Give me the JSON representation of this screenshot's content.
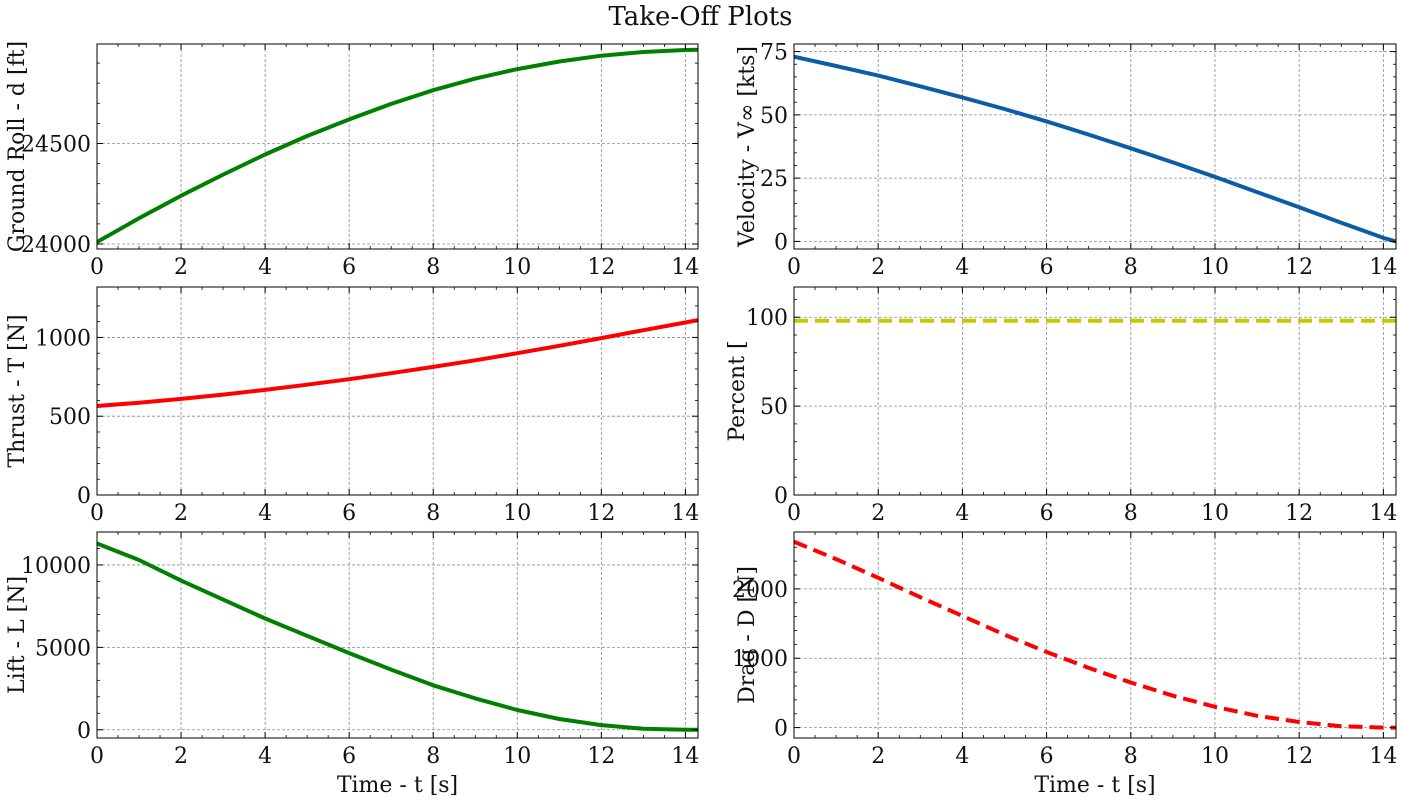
{
  "title": "Take-Off Plots",
  "x_tick_labels": [
    "0",
    "2",
    "4",
    "6",
    "8",
    "10",
    "12",
    "14"
  ],
  "chart_data": [
    {
      "type": "line",
      "ylabel": "Ground Roll - d [ft]",
      "xlabel": "",
      "xlim": [
        0,
        14.3
      ],
      "ylim": [
        23975,
        24995
      ],
      "yticks": [
        24000,
        24500
      ],
      "yminor": [
        24100,
        24200,
        24300,
        24400,
        24600,
        24700,
        24800,
        24900
      ],
      "series": [
        {
          "color": "#008000",
          "style": "solid",
          "x": [
            0,
            1,
            2,
            3,
            4,
            5,
            6,
            7,
            8,
            9,
            10,
            11,
            12,
            13,
            14,
            14.3
          ],
          "y": [
            24010,
            24128,
            24240,
            24345,
            24445,
            24537,
            24620,
            24697,
            24765,
            24823,
            24870,
            24908,
            24937,
            24955,
            24965,
            24966
          ]
        }
      ]
    },
    {
      "type": "line",
      "ylabel": "Velocity - V∞ [kts]",
      "xlabel": "",
      "xlim": [
        0,
        14.3
      ],
      "ylim": [
        -3,
        78
      ],
      "yticks": [
        0,
        25,
        50,
        75
      ],
      "yminor": [
        5,
        10,
        15,
        20,
        30,
        35,
        40,
        45,
        55,
        60,
        65,
        70
      ],
      "series": [
        {
          "color": "#0C5DA5",
          "style": "solid",
          "x": [
            0,
            1,
            2,
            3,
            4,
            5,
            6,
            7,
            8,
            9,
            10,
            11,
            12,
            13,
            14,
            14.3
          ],
          "y": [
            73,
            69.3,
            65.5,
            61.3,
            56.9,
            52.3,
            47.4,
            42.2,
            36.8,
            31.2,
            25.5,
            19.5,
            13.5,
            7.4,
            1.4,
            0
          ]
        }
      ]
    },
    {
      "type": "line",
      "ylabel": "Thrust - T [N]",
      "xlabel": "",
      "xlim": [
        0,
        14.3
      ],
      "ylim": [
        0,
        1320
      ],
      "yticks": [
        0,
        500,
        1000
      ],
      "yminor": [
        100,
        200,
        300,
        400,
        600,
        700,
        800,
        900,
        1100,
        1200
      ],
      "series": [
        {
          "color": "#FF0000",
          "style": "solid",
          "x": [
            0,
            1,
            2,
            3,
            4,
            5,
            6,
            7,
            8,
            9,
            10,
            11,
            12,
            13,
            14,
            14.3
          ],
          "y": [
            565,
            586,
            610,
            637,
            667,
            700,
            735,
            773,
            813,
            855,
            900,
            947,
            996,
            1046,
            1095,
            1110
          ]
        }
      ]
    },
    {
      "type": "line",
      "ylabel": "Percent [",
      "xlabel": "",
      "xlim": [
        0,
        14.3
      ],
      "ylim": [
        0,
        117
      ],
      "yticks": [
        0,
        50,
        100
      ],
      "yminor": [
        10,
        20,
        30,
        40,
        60,
        70,
        80,
        90,
        110
      ],
      "series": [
        {
          "color": "#C8C800",
          "style": "dashed",
          "x": [
            0,
            14.3
          ],
          "y": [
            98,
            98
          ]
        }
      ]
    },
    {
      "type": "line",
      "ylabel": "Lift - L [N]",
      "xlabel": "Time - t [s]",
      "xlim": [
        0,
        14.3
      ],
      "ylim": [
        -500,
        12000
      ],
      "yticks": [
        0,
        5000,
        10000
      ],
      "yminor": [
        1000,
        2000,
        3000,
        4000,
        6000,
        7000,
        8000,
        9000,
        11000
      ],
      "series": [
        {
          "color": "#008000",
          "style": "solid",
          "x": [
            0,
            1,
            2,
            3,
            4,
            5,
            6,
            7,
            8,
            9,
            10,
            11,
            12,
            13,
            14,
            14.3
          ],
          "y": [
            11300,
            10300,
            9050,
            7900,
            6750,
            5700,
            4650,
            3650,
            2700,
            1900,
            1200,
            650,
            280,
            60,
            0,
            0
          ]
        }
      ]
    },
    {
      "type": "line",
      "ylabel": "Drag - D [N]",
      "xlabel": "Time - t [s]",
      "xlim": [
        0,
        14.3
      ],
      "ylim": [
        -150,
        2820
      ],
      "yticks": [
        0,
        1000,
        2000
      ],
      "yminor": [
        200,
        400,
        600,
        800,
        1200,
        1400,
        1600,
        1800,
        2200,
        2400,
        2600
      ],
      "series": [
        {
          "color": "#FF0000",
          "style": "dashed",
          "x": [
            0,
            1,
            2,
            3,
            4,
            5,
            6,
            7,
            8,
            9,
            10,
            11,
            12,
            13,
            14,
            14.3
          ],
          "y": [
            2680,
            2430,
            2160,
            1880,
            1610,
            1340,
            1090,
            860,
            650,
            460,
            300,
            170,
            80,
            20,
            0,
            0
          ]
        }
      ]
    }
  ]
}
